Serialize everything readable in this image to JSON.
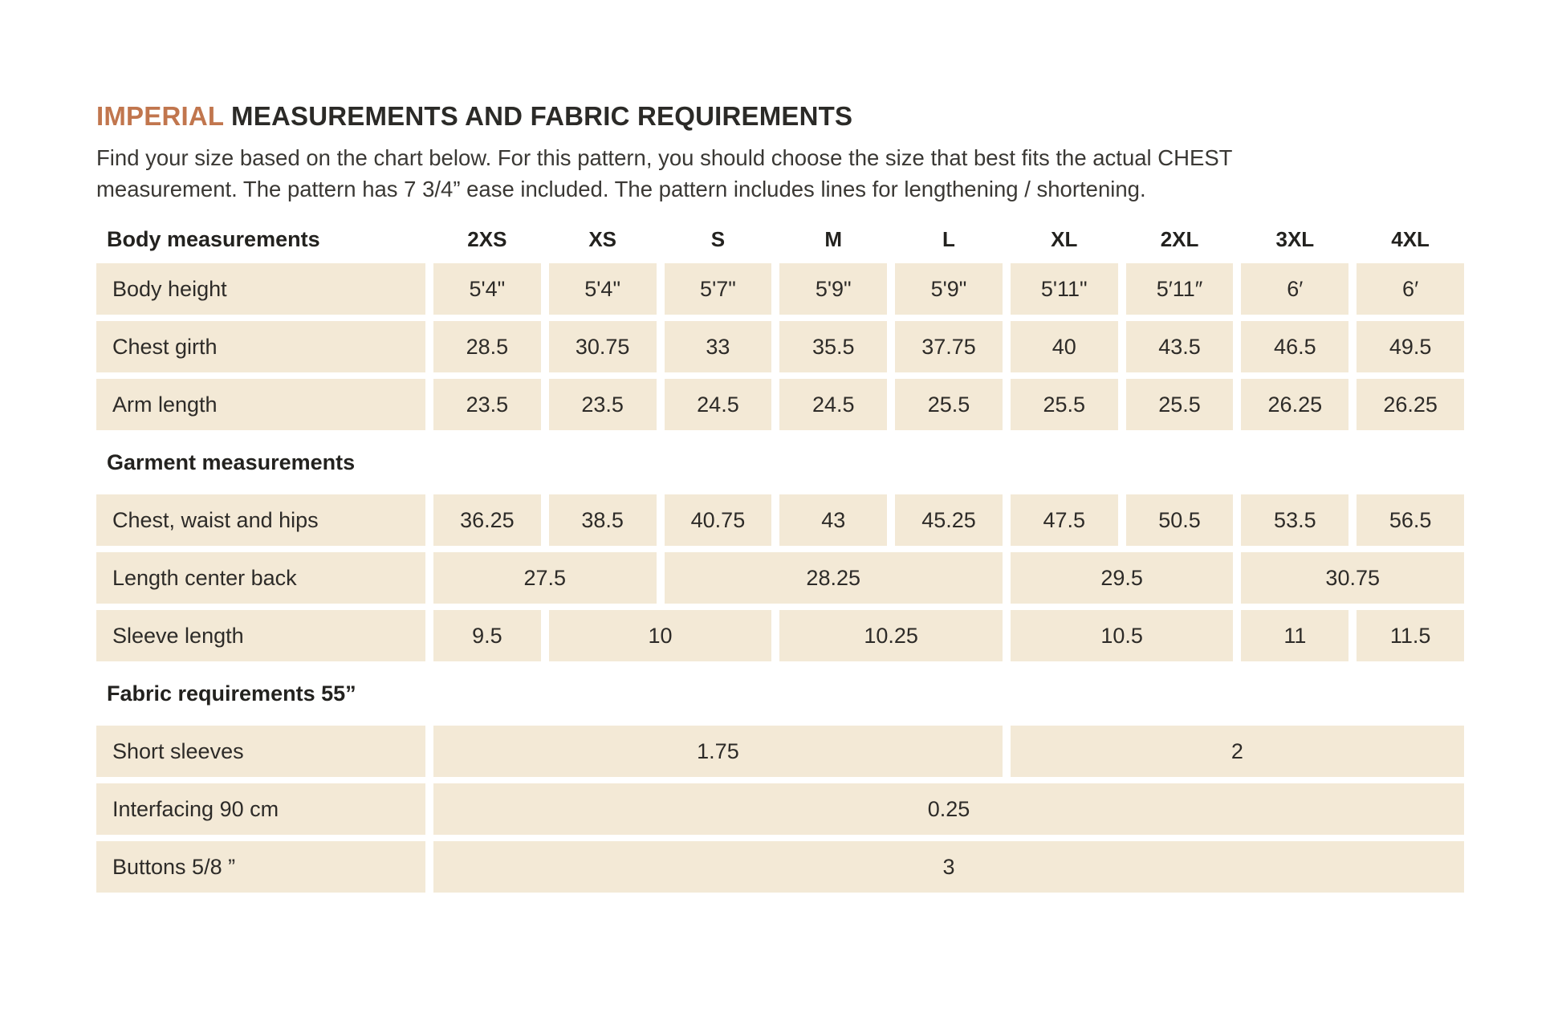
{
  "page_title": {
    "accent": "IMPERIAL",
    "rest": " MEASUREMENTS AND FABRIC REQUIREMENTS"
  },
  "intro": {
    "line1": "Find your size based on the chart below. For this pattern, you should choose the size that best fits the actual CHEST",
    "line2": "measurement. The pattern has 7 3/4” ease included. The pattern includes lines for lengthening / shortening."
  },
  "colors": {
    "accent": "#c1764e",
    "cell_background": "#f3e9d6",
    "text": "#2d2b28"
  },
  "table": {
    "corner_label": "Body measurements",
    "size_headers": [
      "2XS",
      "XS",
      "S",
      "M",
      "L",
      "XL",
      "2XL",
      "3XL",
      "4XL"
    ],
    "rows": [
      {
        "type": "data",
        "label": "Body height",
        "cells": [
          {
            "t": "5'4\"",
            "span": 1
          },
          {
            "t": "5'4\"",
            "span": 1
          },
          {
            "t": "5'7\"",
            "span": 1
          },
          {
            "t": "5'9\"",
            "span": 1
          },
          {
            "t": "5'9\"",
            "span": 1
          },
          {
            "t": "5'11\"",
            "span": 1
          },
          {
            "t": "5′11″",
            "span": 1
          },
          {
            "t": "6′",
            "span": 1
          },
          {
            "t": "6′",
            "span": 1
          }
        ]
      },
      {
        "type": "data",
        "label": "Chest girth",
        "cells": [
          {
            "t": "28.5",
            "span": 1
          },
          {
            "t": "30.75",
            "span": 1
          },
          {
            "t": "33",
            "span": 1
          },
          {
            "t": "35.5",
            "span": 1
          },
          {
            "t": "37.75",
            "span": 1
          },
          {
            "t": "40",
            "span": 1
          },
          {
            "t": "43.5",
            "span": 1
          },
          {
            "t": "46.5",
            "span": 1
          },
          {
            "t": "49.5",
            "span": 1
          }
        ]
      },
      {
        "type": "data",
        "label": "Arm length",
        "cells": [
          {
            "t": "23.5",
            "span": 1
          },
          {
            "t": "23.5",
            "span": 1
          },
          {
            "t": "24.5",
            "span": 1
          },
          {
            "t": "24.5",
            "span": 1
          },
          {
            "t": "25.5",
            "span": 1
          },
          {
            "t": "25.5",
            "span": 1
          },
          {
            "t": "25.5",
            "span": 1
          },
          {
            "t": "26.25",
            "span": 1
          },
          {
            "t": "26.25",
            "span": 1
          }
        ]
      },
      {
        "type": "section",
        "label": "Garment measurements"
      },
      {
        "type": "data",
        "label": "Chest, waist and hips",
        "cells": [
          {
            "t": "36.25",
            "span": 1
          },
          {
            "t": "38.5",
            "span": 1
          },
          {
            "t": "40.75",
            "span": 1
          },
          {
            "t": "43",
            "span": 1
          },
          {
            "t": "45.25",
            "span": 1
          },
          {
            "t": "47.5",
            "span": 1
          },
          {
            "t": "50.5",
            "span": 1
          },
          {
            "t": "53.5",
            "span": 1
          },
          {
            "t": "56.5",
            "span": 1
          }
        ]
      },
      {
        "type": "data",
        "label": "Length center back",
        "cells": [
          {
            "t": "27.5",
            "span": 2
          },
          {
            "t": "28.25",
            "span": 3
          },
          {
            "t": "29.5",
            "span": 2
          },
          {
            "t": "30.75",
            "span": 2
          }
        ]
      },
      {
        "type": "data",
        "label": "Sleeve length",
        "cells": [
          {
            "t": "9.5",
            "span": 1
          },
          {
            "t": "10",
            "span": 2
          },
          {
            "t": "10.25",
            "span": 2
          },
          {
            "t": "10.5",
            "span": 2
          },
          {
            "t": "11",
            "span": 1
          },
          {
            "t": "11.5",
            "span": 1
          }
        ]
      },
      {
        "type": "section",
        "label": "Fabric requirements 55”"
      },
      {
        "type": "data",
        "label": "Short sleeves",
        "cells": [
          {
            "t": "1.75",
            "span": 5
          },
          {
            "t": "2",
            "span": 4
          }
        ]
      },
      {
        "type": "data",
        "label": "Interfacing 90 cm",
        "cells": [
          {
            "t": "0.25",
            "span": 9
          }
        ]
      },
      {
        "type": "data",
        "label": "Buttons 5/8 ”",
        "cells": [
          {
            "t": "3",
            "span": 9
          }
        ]
      }
    ]
  }
}
